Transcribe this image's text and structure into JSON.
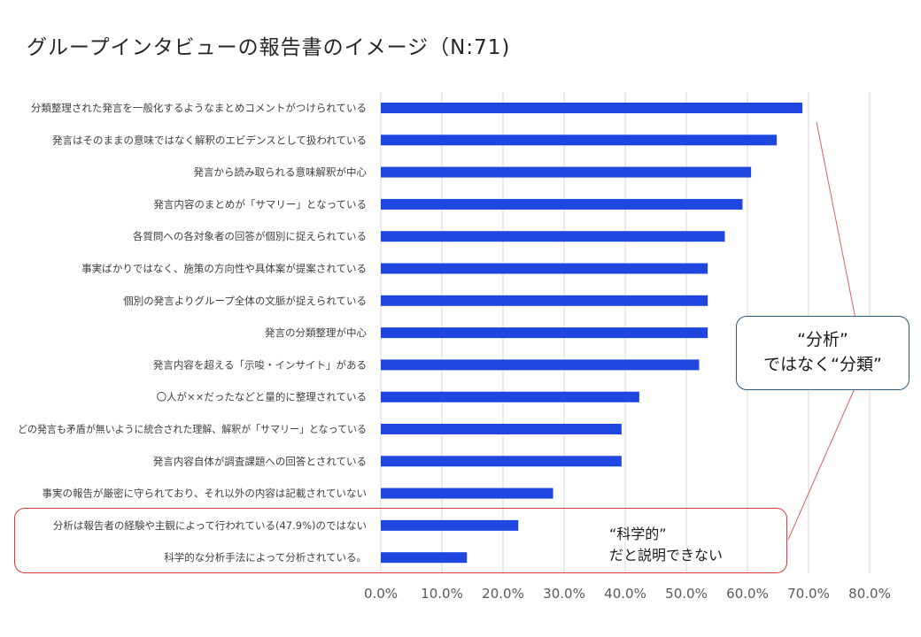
{
  "title": "グループインタビューの報告書のイメージ（N:71)",
  "chart_data": {
    "type": "bar",
    "orientation": "horizontal",
    "title": "グループインタビューの報告書のイメージ（N:71)",
    "xlim": [
      0,
      80
    ],
    "x_ticks": [
      "0.0%",
      "10.0%",
      "20.0%",
      "30.0%",
      "40.0%",
      "50.0%",
      "60.0%",
      "70.0%",
      "80.0%"
    ],
    "grid": true,
    "bar_color": "#1f47e0",
    "categories": [
      "分類整理された発言を一般化するようなまとめコメントがつけられている",
      "発言はそのままの意味ではなく解釈のエビデンスとして扱われている",
      "発言から読み取られる意味解釈が中心",
      "発言内容のまとめが「サマリー」となっている",
      "各質問への各対象者の回答が個別に捉えられている",
      "事実ばかりではなく、施策の方向性や具体案が提案されている",
      "個別の発言よりグループ全体の文脈が捉えられている",
      "発言の分類整理が中心",
      "発言内容を超える「示唆・インサイト」がある",
      "〇人が××だったなどと量的に整理されている",
      "どの発言も矛盾が無いように統合された理解、解釈が「サマリー」となっている",
      "発言内容自体が調査課題への回答とされている",
      "事実の報告が厳密に守られており、それ以外の内容は記載されていない",
      "分析は報告者の経験や主観によって行われている(47.9%)のではない",
      "科学的な分析手法によって分析されている。"
    ],
    "values": [
      69.0,
      64.8,
      60.6,
      59.2,
      56.3,
      53.5,
      53.5,
      53.5,
      52.1,
      42.3,
      39.4,
      39.4,
      28.2,
      22.5,
      14.1
    ]
  },
  "annotations": {
    "analysis_line1": "“分析”",
    "analysis_line2": "ではなく“分類”",
    "science_line1": "“科学的”",
    "science_line2": "だと説明できない"
  },
  "colors": {
    "bar": "#1f47e0",
    "highlight_border": "#d73a3a",
    "callout_border": "#2e5a7a",
    "connector": "#e06060"
  }
}
